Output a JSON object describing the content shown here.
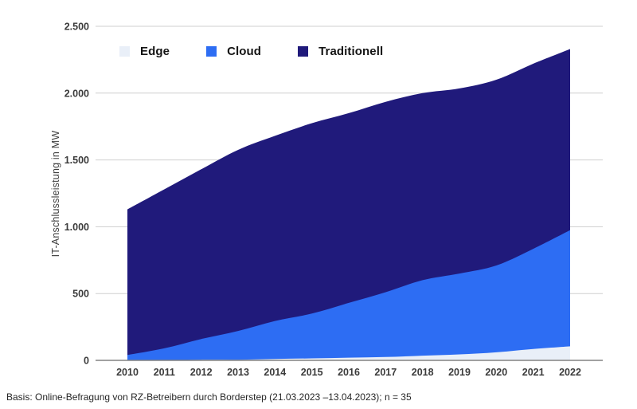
{
  "caption": "Basis: Online-Befragung von RZ-Betreibern durch Borderstep (21.03.2023 –13.04.2023); n = 35",
  "colors": {
    "edge": "#e9eff8",
    "cloud": "#2d6df3",
    "traditionell": "#201a7b",
    "grid": "#cfcfcf",
    "axis": "#828282",
    "tick_text": "#3b3b3b"
  },
  "chart_data": {
    "type": "area",
    "stacked": true,
    "title": "",
    "xlabel": "",
    "ylabel": "IT-Anschlussleistung in MW",
    "categories": [
      "2010",
      "2011",
      "2012",
      "2013",
      "2014",
      "2015",
      "2016",
      "2017",
      "2018",
      "2019",
      "2020",
      "2021",
      "2022"
    ],
    "series": [
      {
        "name": "Edge",
        "color": "#e9eff8",
        "values": [
          0,
          0,
          5,
          5,
          10,
          15,
          20,
          25,
          35,
          45,
          60,
          85,
          105
        ]
      },
      {
        "name": "Cloud",
        "color": "#2d6df3",
        "values": [
          40,
          90,
          155,
          215,
          285,
          335,
          410,
          485,
          565,
          605,
          650,
          750,
          870
        ]
      },
      {
        "name": "Traditionell",
        "color": "#201a7b",
        "values": [
          1090,
          1190,
          1270,
          1355,
          1385,
          1425,
          1420,
          1425,
          1400,
          1385,
          1390,
          1385,
          1355
        ]
      }
    ],
    "totals": [
      1130,
      1280,
      1430,
      1575,
      1680,
      1775,
      1850,
      1935,
      2000,
      2035,
      2100,
      2220,
      2330
    ],
    "ylim": [
      0,
      2500
    ],
    "yticks": [
      0,
      500,
      1000,
      1500,
      2000,
      2500
    ],
    "ytick_labels": [
      "0",
      "500",
      "1.000",
      "1.500",
      "2.000",
      "2.500"
    ],
    "grid": "horizontal",
    "legend_position": "top-left-inside"
  }
}
